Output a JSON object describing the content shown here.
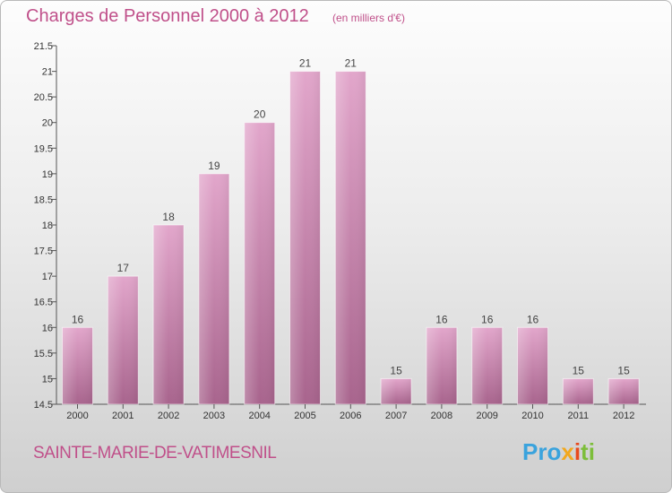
{
  "header": {
    "title": "Charges de Personnel 2000 à 2012",
    "unit": "(en milliers d'€)"
  },
  "footer": {
    "commune": "SAINTE-MARIE-DE-VATIMESNIL",
    "logo_parts": [
      "Pro",
      "x",
      "i",
      "ti"
    ]
  },
  "colors": {
    "accent": "#c0508a",
    "bar_light": "#e2a6cb",
    "bar_dark": "#a8648d"
  },
  "chart_data": {
    "type": "bar",
    "categories": [
      "2000",
      "2001",
      "2002",
      "2003",
      "2004",
      "2005",
      "2006",
      "2007",
      "2008",
      "2009",
      "2010",
      "2011",
      "2012"
    ],
    "values": [
      16,
      17,
      18,
      19,
      20,
      21,
      21,
      15,
      16,
      16,
      16,
      15,
      15
    ],
    "data_labels": [
      "16",
      "17",
      "18",
      "19",
      "20",
      "21",
      "21",
      "15",
      "16",
      "16",
      "16",
      "15",
      "15"
    ],
    "ylim": [
      14.5,
      21.5
    ],
    "yticks": [
      14.5,
      15,
      15.5,
      16,
      16.5,
      17,
      17.5,
      18,
      18.5,
      19,
      19.5,
      20,
      20.5,
      21,
      21.5
    ],
    "ytick_labels": [
      "14.5",
      "15",
      "15.5",
      "16",
      "16.5",
      "17",
      "17.5",
      "18",
      "18.5",
      "19",
      "19.5",
      "20",
      "20.5",
      "21",
      "21.5"
    ],
    "grid": false,
    "legend": "none"
  }
}
